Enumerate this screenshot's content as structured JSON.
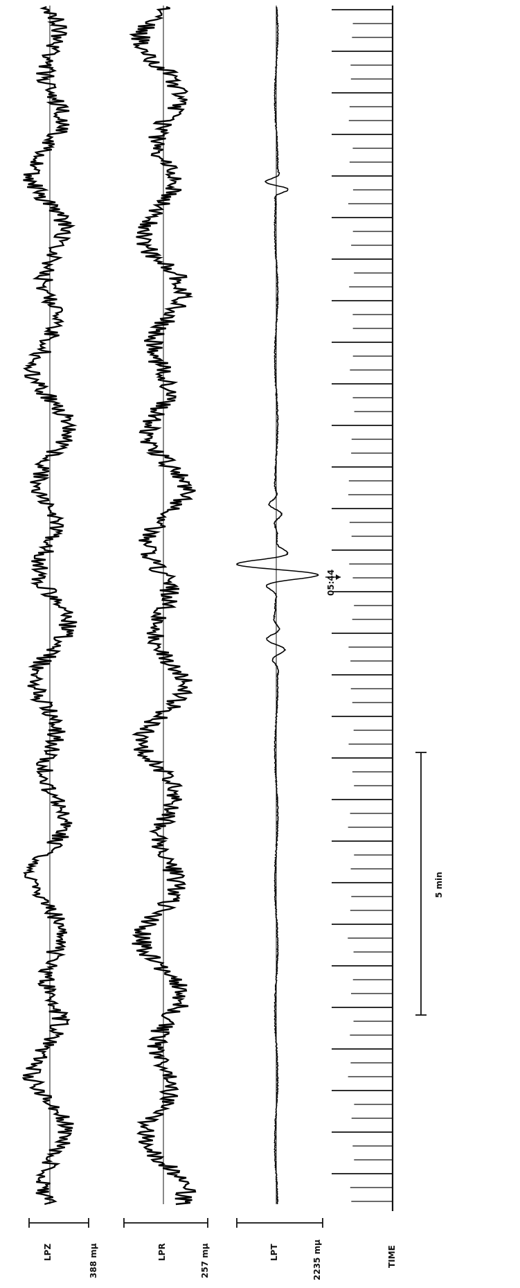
{
  "chart_data": {
    "type": "line",
    "channels": [
      {
        "name": "LPZ",
        "scale": "388 mμ",
        "noise": 1.0,
        "swell": 1.0
      },
      {
        "name": "LPR",
        "scale": "257 mμ",
        "noise": 0.9,
        "swell": 1.0
      },
      {
        "name": "LPT",
        "scale": "2235 mμ",
        "noise": 0.08,
        "swell": 0.05
      }
    ],
    "time_channel": {
      "name": "TIME"
    },
    "annotation": {
      "text": "05:44"
    },
    "scale_bar": {
      "label": "5 min"
    }
  }
}
